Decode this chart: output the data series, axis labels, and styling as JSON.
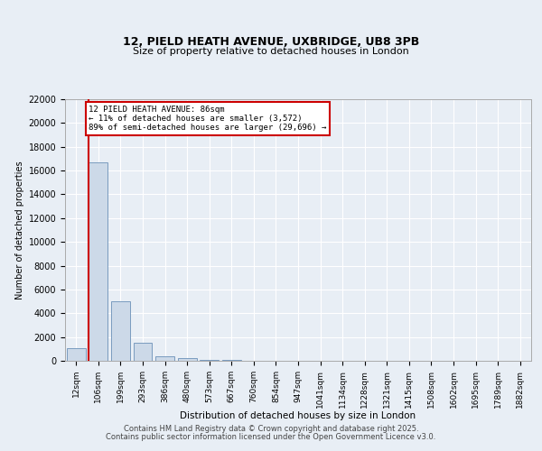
{
  "title_line1": "12, PIELD HEATH AVENUE, UXBRIDGE, UB8 3PB",
  "title_line2": "Size of property relative to detached houses in London",
  "xlabel": "Distribution of detached houses by size in London",
  "ylabel": "Number of detached properties",
  "categories": [
    "12sqm",
    "106sqm",
    "199sqm",
    "293sqm",
    "386sqm",
    "480sqm",
    "573sqm",
    "667sqm",
    "760sqm",
    "854sqm",
    "947sqm",
    "1041sqm",
    "1134sqm",
    "1228sqm",
    "1321sqm",
    "1415sqm",
    "1508sqm",
    "1602sqm",
    "1695sqm",
    "1789sqm",
    "1882sqm"
  ],
  "values": [
    1050,
    16700,
    5000,
    1500,
    400,
    200,
    80,
    50,
    30,
    20,
    10,
    5,
    3,
    2,
    1,
    1,
    1,
    0,
    0,
    0,
    0
  ],
  "bar_color": "#ccd9e8",
  "bar_edge_color": "#7a9bbf",
  "vline_color": "#cc0000",
  "annotation_text_line1": "12 PIELD HEATH AVENUE: 86sqm",
  "annotation_text_line2": "← 11% of detached houses are smaller (3,572)",
  "annotation_text_line3": "89% of semi-detached houses are larger (29,696) →",
  "annotation_box_color": "#cc0000",
  "ylim": [
    0,
    22000
  ],
  "yticks": [
    0,
    2000,
    4000,
    6000,
    8000,
    10000,
    12000,
    14000,
    16000,
    18000,
    20000,
    22000
  ],
  "background_color": "#e8eef5",
  "plot_bg_color": "#e8eef5",
  "grid_color": "#ffffff",
  "footer_line1": "Contains HM Land Registry data © Crown copyright and database right 2025.",
  "footer_line2": "Contains public sector information licensed under the Open Government Licence v3.0."
}
